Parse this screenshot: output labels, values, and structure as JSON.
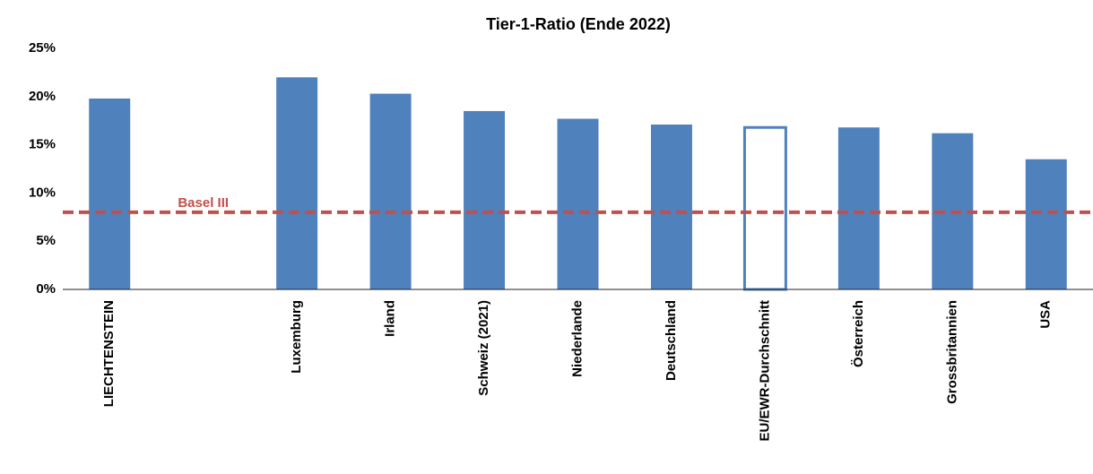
{
  "chart_data": {
    "type": "bar",
    "title": "Tier-1-Ratio (Ende 2022)",
    "categories": [
      "LIECHTENSTEIN",
      null,
      "Luxemburg",
      "Irland",
      "Schweiz (2021)",
      "Niederlande",
      "Deutschland",
      "EU/EWR-Durchschnitt",
      "Österreich",
      "Grossbritannien",
      "USA"
    ],
    "values": [
      19.8,
      null,
      22,
      20.3,
      18.5,
      17.7,
      17.1,
      16.8,
      16.8,
      16.2,
      13.5
    ],
    "color": "#4f81bd",
    "fills": [
      "#4f81bd",
      null,
      "#4f81bd",
      "#4f81bd",
      "#4f81bd",
      "#4f81bd",
      "#4f81bd",
      "#ffffff",
      "#4f81bd",
      "#4f81bd",
      "#4f81bd"
    ],
    "ylim": [
      0,
      25
    ],
    "yticks": [
      {
        "value": 0,
        "label": "0%"
      },
      {
        "value": 5,
        "label": "5%"
      },
      {
        "value": 10,
        "label": "10%"
      },
      {
        "value": 15,
        "label": "15%"
      },
      {
        "value": 20,
        "label": "20%"
      },
      {
        "value": 25,
        "label": "25%"
      }
    ],
    "grid": false,
    "reference_line": {
      "label": "Basel III",
      "value": 8,
      "color": "#c0504d"
    }
  }
}
